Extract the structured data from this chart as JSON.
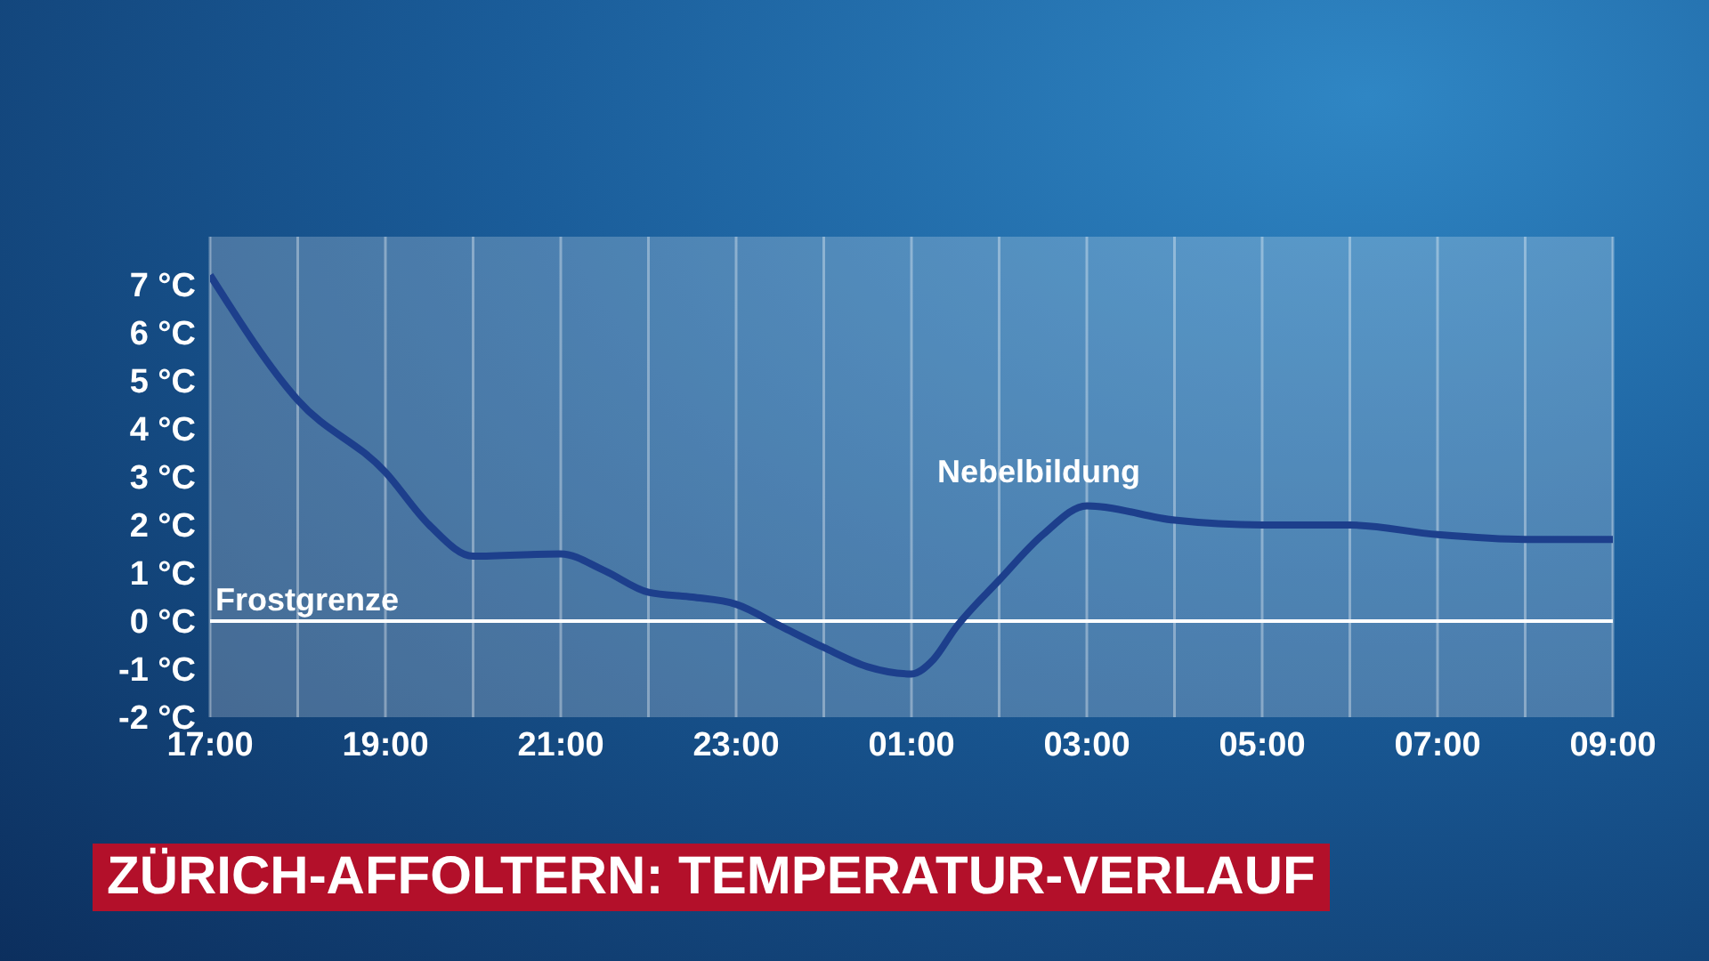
{
  "chart_data": {
    "type": "line",
    "title": "ZÜRICH-AFFOLTERN: TEMPERATUR-VERLAUF",
    "x": [
      "2000-01-01T17:00",
      "2000-01-01T18:00",
      "2000-01-01T19:00",
      "2000-01-01T19:30",
      "2000-01-01T20:00",
      "2000-01-01T21:00",
      "2000-01-01T21:30",
      "2000-01-01T22:00",
      "2000-01-01T22:30",
      "2000-01-01T23:00",
      "2000-01-01T23:30",
      "2000-01-02T00:00",
      "2000-01-02T00:30",
      "2000-01-02T01:00",
      "2000-01-02T01:15",
      "2000-01-02T01:30",
      "2000-01-02T02:00",
      "2000-01-02T02:30",
      "2000-01-02T03:00",
      "2000-01-02T04:00",
      "2000-01-02T05:00",
      "2000-01-02T06:00",
      "2000-01-02T07:00",
      "2000-01-02T08:00",
      "2000-01-02T09:00"
    ],
    "series": [
      {
        "color": "#1d3f8c",
        "values": [
          7.2,
          4.6,
          3.1,
          2.0,
          1.35,
          1.4,
          1.05,
          0.6,
          0.5,
          0.35,
          -0.1,
          -0.55,
          -0.95,
          -1.1,
          -0.8,
          -0.15,
          0.85,
          1.8,
          2.4,
          2.1,
          2.0,
          2.0,
          1.8,
          1.7,
          1.7
        ]
      }
    ],
    "xlim": [
      "2000-01-01T17:00",
      "2000-01-02T09:00"
    ],
    "xticks": [
      {
        "value": "2000-01-01T17:00",
        "label": "17:00"
      },
      {
        "value": "2000-01-01T18:00",
        "label": null
      },
      {
        "value": "2000-01-01T19:00",
        "label": "19:00"
      },
      {
        "value": "2000-01-01T20:00",
        "label": null
      },
      {
        "value": "2000-01-01T21:00",
        "label": "21:00"
      },
      {
        "value": "2000-01-01T22:00",
        "label": null
      },
      {
        "value": "2000-01-01T23:00",
        "label": "23:00"
      },
      {
        "value": "2000-01-02T00:00",
        "label": null
      },
      {
        "value": "2000-01-02T01:00",
        "label": "01:00"
      },
      {
        "value": "2000-01-02T02:00",
        "label": null
      },
      {
        "value": "2000-01-02T03:00",
        "label": "03:00"
      },
      {
        "value": "2000-01-02T04:00",
        "label": null
      },
      {
        "value": "2000-01-02T05:00",
        "label": "05:00"
      },
      {
        "value": "2000-01-02T06:00",
        "label": null
      },
      {
        "value": "2000-01-02T07:00",
        "label": "07:00"
      },
      {
        "value": "2000-01-02T08:00",
        "label": null
      },
      {
        "value": "2000-01-02T09:00",
        "label": "09:00"
      }
    ],
    "ylim": [
      -2,
      8
    ],
    "yticks": [
      {
        "value": -2,
        "label": "-2 °C"
      },
      {
        "value": -1,
        "label": "-1 °C"
      },
      {
        "value": 0,
        "label": "0 °C"
      },
      {
        "value": 1,
        "label": "1 °C"
      },
      {
        "value": 2,
        "label": "2 °C"
      },
      {
        "value": 3,
        "label": "3 °C"
      },
      {
        "value": 4,
        "label": "4 °C"
      },
      {
        "value": 5,
        "label": "5 °C"
      },
      {
        "value": 6,
        "label": "6 °C"
      },
      {
        "value": 7,
        "label": "7 °C"
      }
    ],
    "grid": "x",
    "marker": "none",
    "line_style": "solid",
    "ref_lines": [
      {
        "axis": "y",
        "value": 0,
        "label": "Frostgrenze",
        "color": "#ffffff"
      }
    ],
    "annotations": [
      {
        "text": "Nebelbildung",
        "x": "2000-01-02T03:00",
        "y": 2.4
      }
    ]
  }
}
